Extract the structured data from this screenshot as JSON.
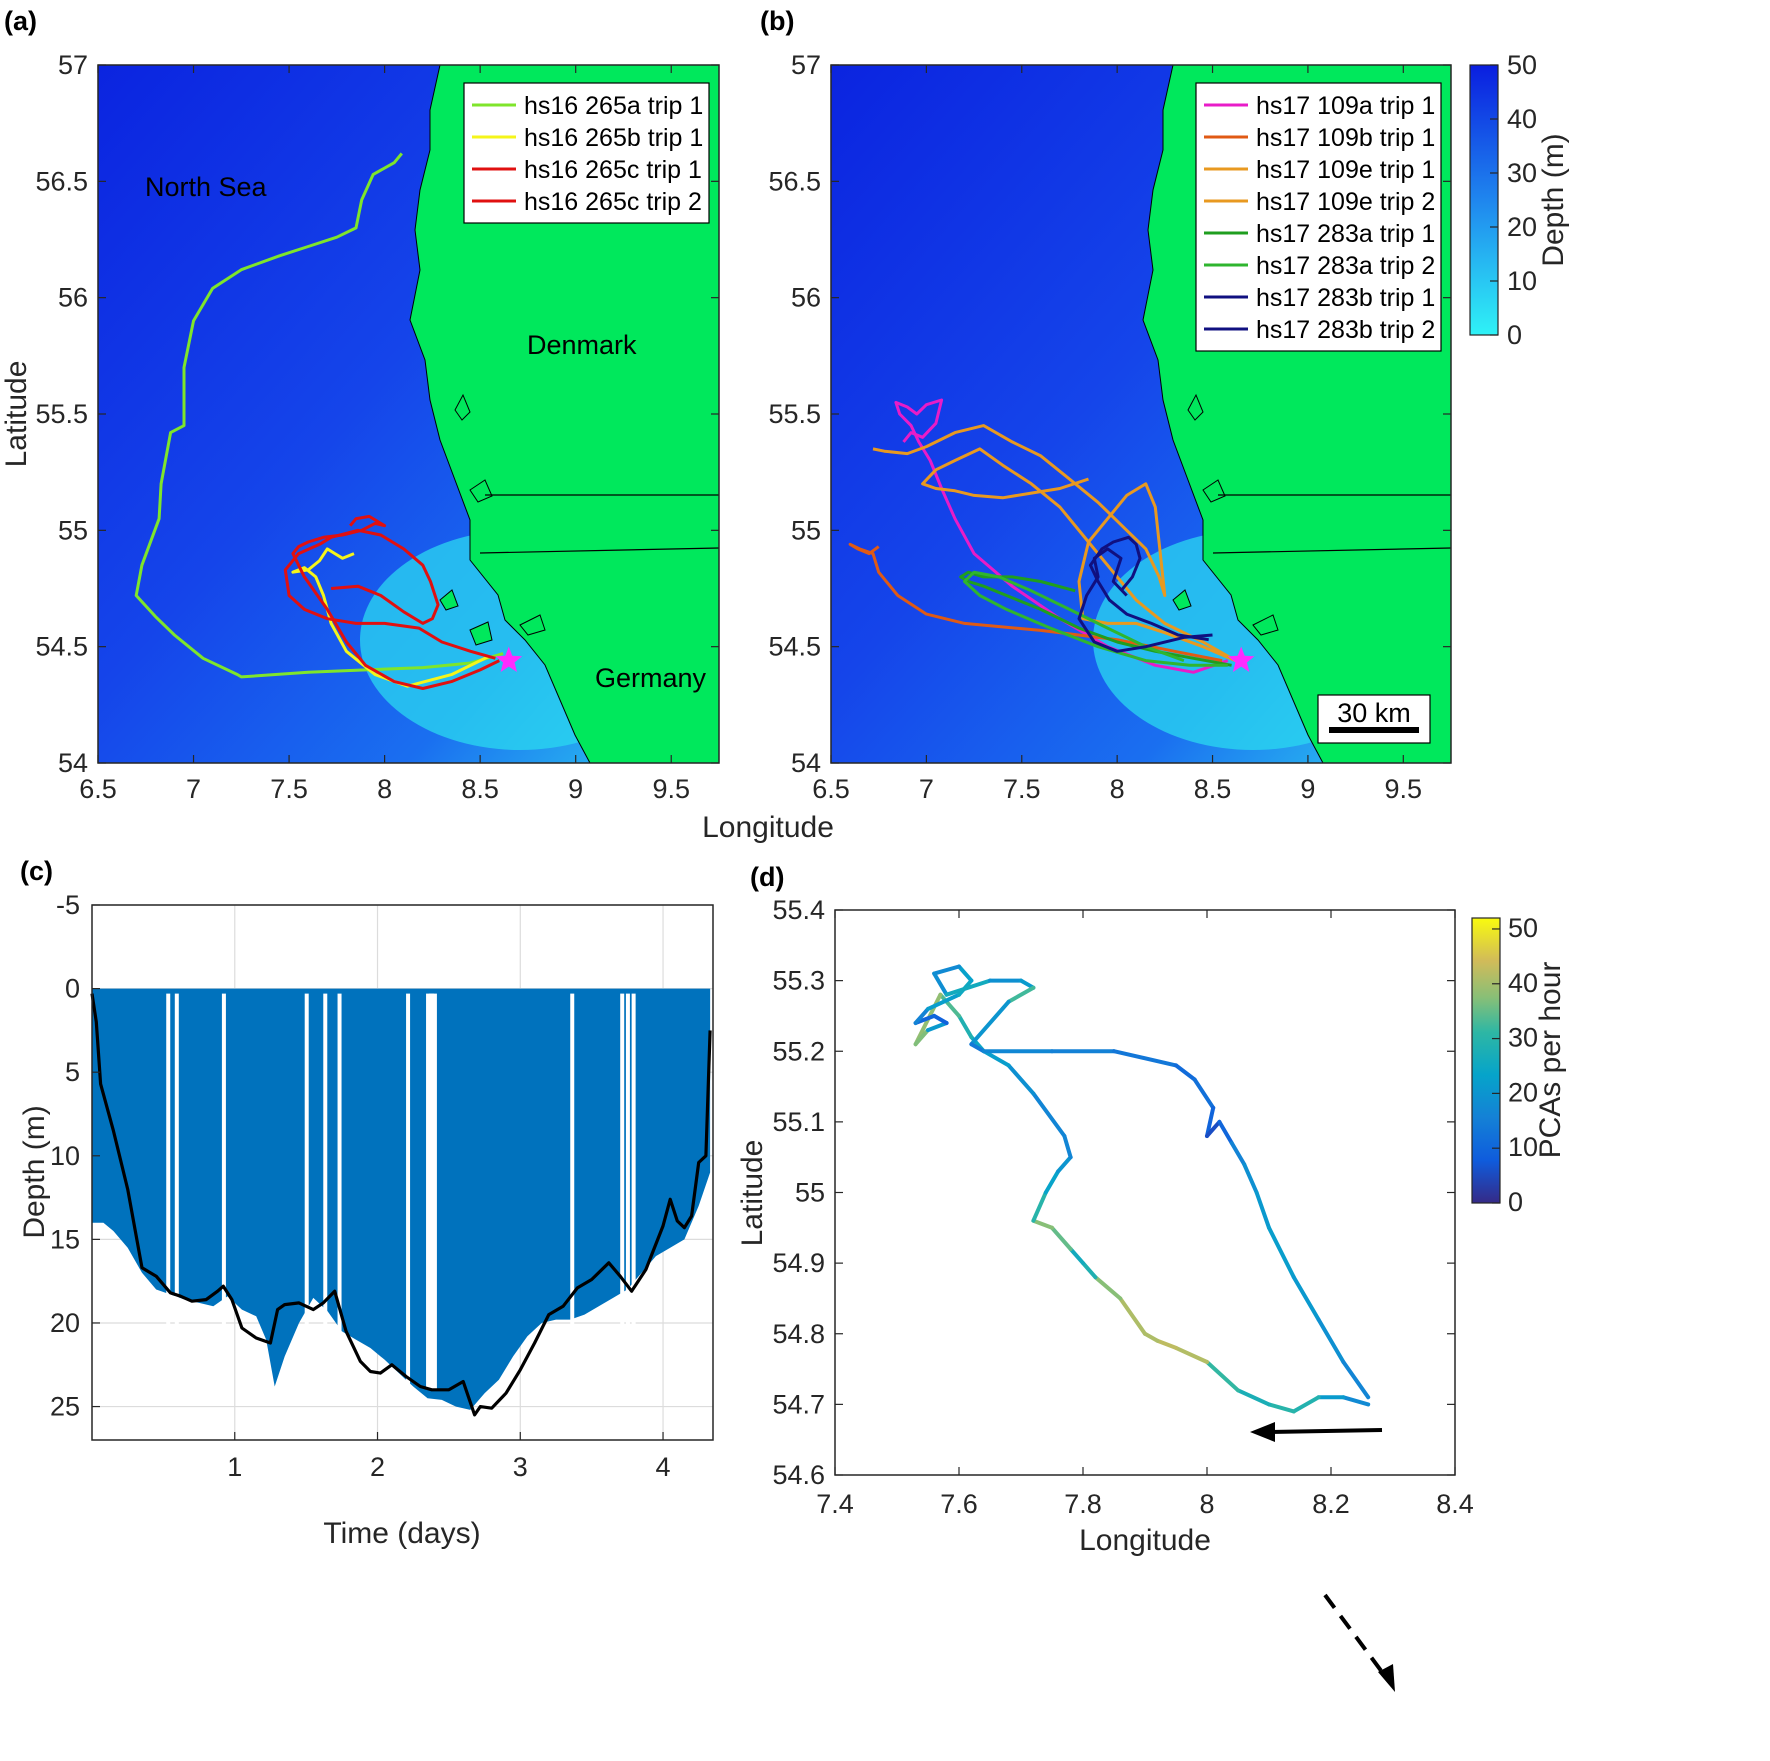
{
  "panel_labels": [
    "(a)",
    "(b)",
    "(c)",
    "(d)"
  ],
  "colors": {
    "land": "#00e85c",
    "sea_deep": "#0b24e0",
    "sea_mid": "#1a6ff0",
    "sea_shallow": "#2fe6f4",
    "dive": "#0072bd",
    "bathymetry_line": "#000000",
    "star": "#ff2bff"
  },
  "map": {
    "xlabel": "Longitude",
    "ylabel": "Latitude",
    "xticks": [
      "6.5",
      "7",
      "7.5",
      "8",
      "8.5",
      "9",
      "9.5"
    ],
    "yticks": [
      "54",
      "54.5",
      "55",
      "55.5",
      "56",
      "56.5",
      "57"
    ],
    "labels": {
      "north_sea": "North Sea",
      "denmark": "Denmark",
      "germany": "Germany"
    },
    "scale_bar": "30 km",
    "colorbar": {
      "label": "Depth (m)",
      "ticks": [
        "0",
        "10",
        "20",
        "30",
        "40",
        "50"
      ]
    }
  },
  "chart_data": [
    {
      "type": "line",
      "panel": "(a)",
      "xlabel": "Longitude",
      "ylabel": "Latitude",
      "xlim": [
        6.5,
        9.75
      ],
      "ylim": [
        54,
        57
      ],
      "marker": {
        "symbol": "star",
        "lon": 8.65,
        "lat": 54.44
      },
      "series": [
        {
          "name": "hs16 265a trip 1",
          "color": "#7fe52b",
          "lon": [
            8.62,
            8.45,
            8.2,
            7.9,
            7.6,
            7.25,
            7.23,
            7.05,
            6.9,
            6.8,
            6.7,
            6.73,
            6.82,
            6.83,
            6.88,
            6.95,
            6.95,
            7.0,
            7.1,
            7.25,
            7.45,
            7.6,
            7.75,
            7.85,
            7.88,
            7.94,
            8.05,
            8.09
          ],
          "lat": [
            54.47,
            54.43,
            54.41,
            54.4,
            54.39,
            54.37,
            54.38,
            54.45,
            54.55,
            54.63,
            54.72,
            54.85,
            55.05,
            55.2,
            55.42,
            55.45,
            55.7,
            55.9,
            56.04,
            56.12,
            56.18,
            56.22,
            56.26,
            56.3,
            56.42,
            56.53,
            56.58,
            56.62
          ]
        },
        {
          "name": "hs16 265b trip 1",
          "color": "#f5f51a",
          "lon": [
            8.55,
            8.35,
            8.12,
            7.95,
            7.8,
            7.72,
            7.68,
            7.64,
            7.58,
            7.52,
            7.6,
            7.66,
            7.7,
            7.74,
            7.78,
            7.84
          ],
          "lat": [
            54.46,
            54.38,
            54.33,
            54.38,
            54.48,
            54.6,
            54.72,
            54.8,
            54.84,
            54.82,
            54.83,
            54.87,
            54.92,
            54.9,
            54.88,
            54.9
          ]
        },
        {
          "name": "hs16 265c trip 1",
          "color": "#e01010",
          "lon": [
            8.6,
            8.5,
            8.35,
            8.2,
            8.05,
            7.9,
            7.8,
            7.7,
            7.58,
            7.52,
            7.55,
            7.6,
            7.68,
            7.78,
            7.88,
            7.95,
            8.0,
            7.92,
            7.85,
            7.82
          ],
          "lat": [
            54.44,
            54.4,
            54.35,
            54.32,
            54.35,
            54.42,
            54.52,
            54.66,
            54.8,
            54.9,
            54.93,
            54.95,
            54.97,
            54.98,
            55.0,
            55.03,
            55.02,
            55.06,
            55.05,
            55.02
          ]
        },
        {
          "name": "hs16 265c trip 2",
          "color": "#e01010",
          "lon": [
            8.58,
            8.45,
            8.3,
            8.18,
            8.0,
            7.85,
            7.7,
            7.58,
            7.5,
            7.48,
            7.55,
            7.66,
            7.72,
            7.86,
            7.98,
            8.1,
            8.2,
            8.24,
            8.28,
            8.25,
            8.2,
            8.1,
            7.98,
            7.86,
            7.72
          ],
          "lat": [
            54.45,
            54.48,
            54.52,
            54.58,
            54.6,
            54.6,
            54.62,
            54.66,
            54.72,
            54.83,
            54.9,
            54.94,
            54.97,
            55.0,
            54.98,
            54.92,
            54.85,
            54.78,
            54.68,
            54.62,
            54.6,
            54.65,
            54.72,
            54.76,
            54.75
          ]
        }
      ]
    },
    {
      "type": "line",
      "panel": "(b)",
      "xlabel": "Longitude",
      "ylabel": "Latitude",
      "xlim": [
        6.5,
        9.75
      ],
      "ylim": [
        54,
        57
      ],
      "marker": {
        "symbol": "star",
        "lon": 8.65,
        "lat": 54.44
      },
      "series": [
        {
          "name": "hs17 109a trip 1",
          "color": "#e81cc8",
          "lon": [
            8.58,
            8.4,
            8.2,
            7.95,
            7.7,
            7.45,
            7.25,
            7.15,
            7.08,
            7.02,
            6.96,
            6.92,
            6.86,
            6.84,
            6.9,
            6.95,
            7.0,
            7.08,
            7.05,
            6.98,
            6.92,
            6.88
          ],
          "lat": [
            54.44,
            54.39,
            54.42,
            54.5,
            54.62,
            54.76,
            54.9,
            55.05,
            55.18,
            55.3,
            55.38,
            55.45,
            55.5,
            55.55,
            55.53,
            55.5,
            55.54,
            55.56,
            55.46,
            55.4,
            55.42,
            55.38
          ]
        },
        {
          "name": "hs17 109b trip 1",
          "color": "#e05a14",
          "lon": [
            8.55,
            8.3,
            8.0,
            7.6,
            7.2,
            7.0,
            6.85,
            6.75,
            6.72,
            6.65,
            6.6,
            6.64,
            6.7,
            6.75
          ],
          "lat": [
            54.44,
            54.48,
            54.53,
            54.57,
            54.6,
            54.64,
            54.72,
            54.82,
            54.9,
            54.92,
            54.94,
            54.92,
            54.9,
            54.93
          ]
        },
        {
          "name": "hs17 109e trip 1",
          "color": "#e89920",
          "lon": [
            8.62,
            8.45,
            8.25,
            8.1,
            7.95,
            7.82,
            7.8,
            7.85,
            7.95,
            8.05,
            8.15,
            8.2,
            8.25,
            8.22,
            8.15,
            8.05,
            7.9,
            7.75,
            7.6,
            7.45,
            7.3,
            7.15,
            7.0,
            6.9,
            6.78,
            6.72
          ],
          "lat": [
            54.44,
            54.5,
            54.56,
            54.6,
            54.6,
            54.62,
            54.78,
            54.95,
            55.05,
            55.15,
            55.2,
            55.1,
            54.72,
            54.8,
            54.92,
            55.0,
            55.12,
            55.22,
            55.32,
            55.38,
            55.45,
            55.42,
            55.36,
            55.33,
            55.34,
            55.35
          ]
        },
        {
          "name": "hs17 109e trip 2",
          "color": "#e89920",
          "lon": [
            8.6,
            8.45,
            8.25,
            8.1,
            7.98,
            7.85,
            7.7,
            7.55,
            7.4,
            7.28,
            7.15,
            7.05,
            6.98,
            7.05,
            7.15,
            7.25,
            7.4,
            7.55,
            7.7,
            7.85
          ],
          "lat": [
            54.45,
            54.52,
            54.6,
            54.7,
            54.82,
            54.95,
            55.1,
            55.2,
            55.28,
            55.35,
            55.3,
            55.26,
            55.2,
            55.18,
            55.17,
            55.15,
            55.14,
            55.16,
            55.18,
            55.22
          ]
        },
        {
          "name": "hs17 283a trip 1",
          "color": "#1f9e1f",
          "lon": [
            8.6,
            8.4,
            8.2,
            8.0,
            7.8,
            7.6,
            7.42,
            7.3,
            7.22,
            7.18,
            7.22,
            7.3,
            7.45,
            7.6,
            7.78
          ],
          "lat": [
            54.42,
            54.45,
            54.48,
            54.52,
            54.58,
            54.66,
            54.72,
            54.76,
            54.78,
            54.8,
            54.82,
            54.8,
            54.8,
            54.78,
            54.74
          ]
        },
        {
          "name": "hs17 283a trip 2",
          "color": "#2fb52f",
          "lon": [
            8.58,
            8.38,
            8.15,
            7.9,
            7.65,
            7.42,
            7.28,
            7.2,
            7.25,
            7.38,
            7.55,
            7.75,
            7.95,
            8.15,
            8.35
          ],
          "lat": [
            54.42,
            54.42,
            54.44,
            54.5,
            54.58,
            54.66,
            54.72,
            54.78,
            54.82,
            54.8,
            54.74,
            54.66,
            54.58,
            54.5,
            54.44
          ]
        },
        {
          "name": "hs17 283b trip 1",
          "color": "#101080",
          "lon": [
            8.5,
            8.35,
            8.15,
            8.0,
            7.88,
            7.8,
            7.84,
            7.9,
            7.88,
            7.95,
            8.02,
            7.98,
            8.05
          ],
          "lat": [
            54.55,
            54.54,
            54.5,
            54.48,
            54.52,
            54.62,
            54.72,
            54.8,
            54.88,
            54.92,
            54.88,
            54.78,
            54.72
          ]
        },
        {
          "name": "hs17 283b trip 2",
          "color": "#101080",
          "lon": [
            8.48,
            8.32,
            8.18,
            8.05,
            7.96,
            7.9,
            7.86,
            7.92,
            7.98,
            8.06,
            8.1,
            8.12,
            8.08,
            8.02
          ],
          "lat": [
            54.53,
            54.55,
            54.6,
            54.64,
            54.7,
            54.78,
            54.85,
            54.92,
            54.95,
            54.97,
            54.94,
            54.88,
            54.8,
            54.74
          ]
        }
      ]
    },
    {
      "type": "area",
      "panel": "(c)",
      "xlabel": "Time (days)",
      "ylabel": "Depth (m)",
      "xlim": [
        0,
        4.35
      ],
      "ylim": [
        -5,
        27
      ],
      "xticks": [
        "1",
        "2",
        "3",
        "4"
      ],
      "yticks": [
        "-5",
        "0",
        "5",
        "10",
        "15",
        "20",
        "25"
      ],
      "series": [
        {
          "name": "dive depth",
          "color": "#0072bd",
          "x": [
            0.0,
            0.08,
            0.15,
            0.25,
            0.35,
            0.45,
            0.55,
            0.65,
            0.75,
            0.85,
            0.95,
            1.05,
            1.15,
            1.22,
            1.28,
            1.35,
            1.45,
            1.55,
            1.65,
            1.75,
            1.85,
            1.95,
            2.05,
            2.15,
            2.25,
            2.35,
            2.45,
            2.55,
            2.65,
            2.75,
            2.85,
            2.95,
            3.05,
            3.15,
            3.25,
            3.35,
            3.45,
            3.55,
            3.65,
            3.75,
            3.85,
            3.95,
            4.05,
            4.15,
            4.25,
            4.33
          ],
          "y": [
            14,
            14,
            14.5,
            15.5,
            17,
            18,
            18.3,
            18.6,
            18.8,
            19,
            18.4,
            19.2,
            19.6,
            21,
            23.8,
            22,
            20,
            18.5,
            19.3,
            20.5,
            21,
            21.5,
            22.2,
            23,
            23.8,
            24.5,
            24.6,
            25,
            25.2,
            24.2,
            23.4,
            22,
            20.8,
            20,
            19.8,
            19.8,
            19.5,
            19,
            18.5,
            18,
            17,
            16,
            15.5,
            15,
            13,
            11
          ]
        },
        {
          "name": "bathymetry",
          "color": "#000000",
          "x": [
            0.0,
            0.03,
            0.06,
            0.15,
            0.25,
            0.35,
            0.45,
            0.55,
            0.62,
            0.7,
            0.8,
            0.88,
            0.92,
            0.98,
            1.05,
            1.15,
            1.25,
            1.3,
            1.35,
            1.45,
            1.55,
            1.62,
            1.7,
            1.78,
            1.88,
            1.95,
            2.02,
            2.1,
            2.2,
            2.3,
            2.38,
            2.5,
            2.6,
            2.68,
            2.72,
            2.8,
            2.9,
            3.0,
            3.1,
            3.2,
            3.3,
            3.4,
            3.5,
            3.62,
            3.7,
            3.78,
            3.88,
            4.0,
            4.05,
            4.1,
            4.15,
            4.2,
            4.25,
            4.3,
            4.33
          ],
          "y": [
            0.3,
            2,
            5.7,
            8.5,
            12,
            16.7,
            17.2,
            18.2,
            18.4,
            18.7,
            18.6,
            18.1,
            17.8,
            18.6,
            20.3,
            20.9,
            21.2,
            19.2,
            18.9,
            18.8,
            19.2,
            18.8,
            18.1,
            20.5,
            22.3,
            22.9,
            23.0,
            22.5,
            23.2,
            23.8,
            24.0,
            24.0,
            23.5,
            25.5,
            25.0,
            25.1,
            24.2,
            22.8,
            21.2,
            19.5,
            19.0,
            17.9,
            17.4,
            16.4,
            17.2,
            18.1,
            16.8,
            14.2,
            12.6,
            13.9,
            14.3,
            13.6,
            10.4,
            10.0,
            2.5
          ]
        }
      ]
    },
    {
      "type": "scatter",
      "panel": "(d)",
      "xlabel": "Longitude",
      "ylabel": "Latitude",
      "xlim": [
        7.4,
        8.4
      ],
      "ylim": [
        54.6,
        55.4
      ],
      "xticks": [
        "7.4",
        "7.6",
        "7.8",
        "8",
        "8.2",
        "8.4"
      ],
      "yticks": [
        "54.6",
        "54.7",
        "54.8",
        "54.9",
        "55",
        "55.1",
        "55.2",
        "55.3",
        "55.4"
      ],
      "colorbar": {
        "label": "PCAs per hour",
        "ticks": [
          "0",
          "10",
          "20",
          "30",
          "40",
          "50"
        ],
        "range": [
          0,
          52
        ]
      },
      "series": [
        {
          "name": "track",
          "lon": [
            8.26,
            8.22,
            8.18,
            8.14,
            8.1,
            8.05,
            8.0,
            7.95,
            7.92,
            7.9,
            7.86,
            7.82,
            7.8,
            7.78,
            7.75,
            7.72,
            7.74,
            7.76,
            7.78,
            7.77,
            7.72,
            7.68,
            7.64,
            7.62,
            7.6,
            7.57,
            7.53,
            7.55,
            7.58,
            7.56,
            7.53,
            7.55,
            7.6,
            7.62,
            7.6,
            7.56,
            7.58,
            7.65,
            7.7,
            7.72,
            7.68,
            7.62,
            7.64,
            7.75,
            7.85,
            7.95,
            7.98,
            8.01,
            8.0,
            8.02,
            8.04,
            8.06,
            8.08,
            8.1,
            8.14,
            8.18,
            8.22,
            8.26
          ],
          "lat": [
            54.7,
            54.71,
            54.71,
            54.69,
            54.7,
            54.72,
            54.76,
            54.78,
            54.79,
            54.8,
            54.85,
            54.88,
            54.9,
            54.92,
            54.95,
            54.96,
            55.0,
            55.03,
            55.05,
            55.08,
            55.14,
            55.18,
            55.2,
            55.22,
            55.25,
            55.28,
            55.21,
            55.23,
            55.24,
            55.25,
            55.24,
            55.26,
            55.28,
            55.3,
            55.32,
            55.31,
            55.28,
            55.3,
            55.3,
            55.29,
            55.27,
            55.21,
            55.2,
            55.2,
            55.2,
            55.18,
            55.16,
            55.12,
            55.08,
            55.1,
            55.07,
            55.04,
            55.0,
            54.95,
            54.88,
            54.82,
            54.76,
            54.71
          ],
          "pcas": [
            20,
            15,
            28,
            30,
            30,
            25,
            38,
            45,
            40,
            42,
            40,
            35,
            22,
            30,
            40,
            35,
            25,
            22,
            18,
            15,
            18,
            20,
            24,
            25,
            32,
            35,
            42,
            32,
            10,
            8,
            12,
            20,
            24,
            26,
            20,
            15,
            22,
            30,
            8,
            35,
            30,
            10,
            18,
            16,
            15,
            12,
            10,
            14,
            5,
            6,
            14,
            18,
            20,
            22,
            22,
            20,
            18,
            15
          ]
        },
        {
          "name": "direction arrows"
        }
      ]
    }
  ]
}
